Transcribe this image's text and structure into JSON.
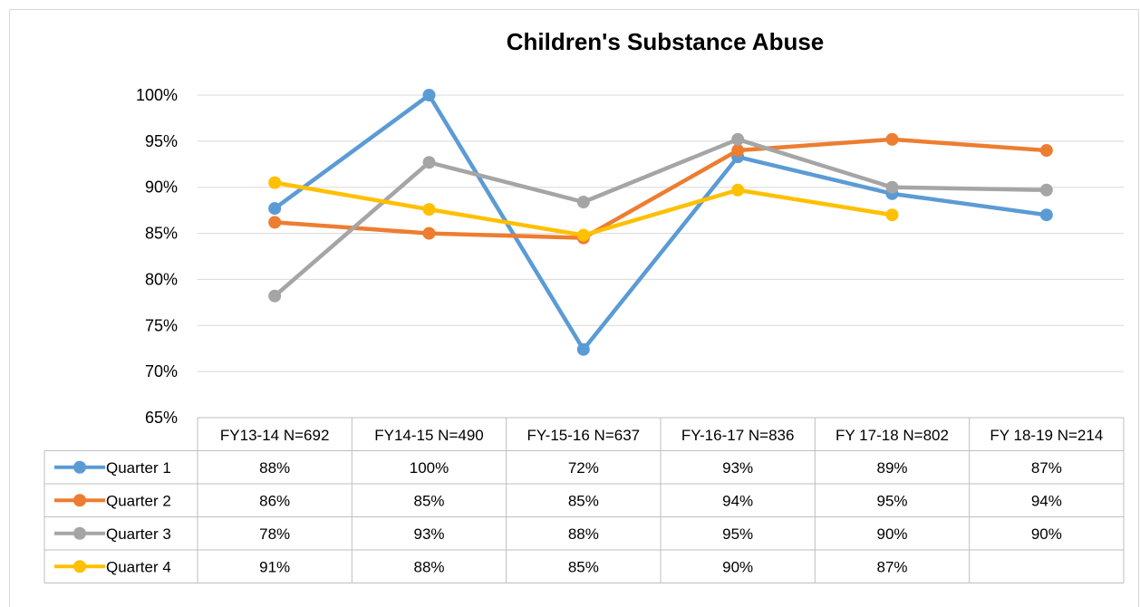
{
  "chart_data": {
    "type": "line",
    "title": "Children's Substance Abuse",
    "ylim": [
      65,
      100
    ],
    "y_ticks": [
      "65%",
      "70%",
      "75%",
      "80%",
      "85%",
      "90%",
      "95%",
      "100%"
    ],
    "y_tick_values": [
      65,
      70,
      75,
      80,
      85,
      90,
      95,
      100
    ],
    "grid": true,
    "legend": "data table",
    "categories": [
      "FY13-14 N=692",
      "FY14-15 N=490",
      "FY-15-16 N=637",
      "FY-16-17 N=836",
      "FY 17-18 N=802",
      "FY 18-19 N=214"
    ],
    "series": [
      {
        "name": "Quarter 1",
        "color": "#5b9bd5",
        "values": [
          87.7,
          100,
          72.4,
          93.3,
          89.3,
          87
        ],
        "labels": [
          "88%",
          "100%",
          "72%",
          "93%",
          "89%",
          "87%"
        ]
      },
      {
        "name": "Quarter 2",
        "color": "#ed7d31",
        "values": [
          86.2,
          85,
          84.5,
          94,
          95.2,
          94
        ],
        "labels": [
          "86%",
          "85%",
          "85%",
          "94%",
          "95%",
          "94%"
        ]
      },
      {
        "name": "Quarter 3",
        "color": "#a5a5a5",
        "values": [
          78.2,
          92.7,
          88.4,
          95.2,
          90,
          89.7
        ],
        "labels": [
          "78%",
          "93%",
          "88%",
          "95%",
          "90%",
          "90%"
        ]
      },
      {
        "name": "Quarter 4",
        "color": "#ffc000",
        "values": [
          90.5,
          87.6,
          84.8,
          89.7,
          87,
          null
        ],
        "labels": [
          "91%",
          "88%",
          "85%",
          "90%",
          "87%",
          ""
        ]
      }
    ]
  }
}
